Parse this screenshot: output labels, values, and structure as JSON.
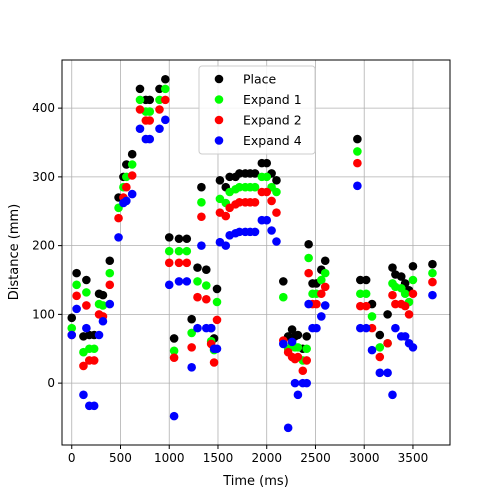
{
  "chart_data": {
    "type": "scatter",
    "title": "",
    "xlabel": "Time (ms)",
    "ylabel": "Distance (mm)",
    "xlim": [
      -100,
      3880
    ],
    "ylim": [
      -90,
      470
    ],
    "xticks": [
      0,
      500,
      1000,
      1500,
      2000,
      2500,
      3000,
      3500
    ],
    "yticks": [
      0,
      100,
      200,
      300,
      400
    ],
    "grid": true,
    "legend_position": "upper center",
    "series": [
      {
        "name": "Place",
        "color": "#000000",
        "points": [
          [
            0,
            95
          ],
          [
            50,
            160
          ],
          [
            120,
            68
          ],
          [
            150,
            150
          ],
          [
            180,
            70
          ],
          [
            230,
            70
          ],
          [
            280,
            130
          ],
          [
            320,
            128
          ],
          [
            390,
            178
          ],
          [
            480,
            270
          ],
          [
            530,
            300
          ],
          [
            560,
            318
          ],
          [
            620,
            333
          ],
          [
            700,
            428
          ],
          [
            760,
            412
          ],
          [
            800,
            412
          ],
          [
            900,
            428
          ],
          [
            960,
            442
          ],
          [
            1000,
            212
          ],
          [
            1050,
            65
          ],
          [
            1100,
            210
          ],
          [
            1180,
            210
          ],
          [
            1230,
            93
          ],
          [
            1290,
            168
          ],
          [
            1330,
            285
          ],
          [
            1380,
            165
          ],
          [
            1430,
            80
          ],
          [
            1460,
            65
          ],
          [
            1490,
            137
          ],
          [
            1520,
            295
          ],
          [
            1580,
            285
          ],
          [
            1620,
            300
          ],
          [
            1680,
            300
          ],
          [
            1720,
            305
          ],
          [
            1780,
            305
          ],
          [
            1830,
            305
          ],
          [
            1880,
            305
          ],
          [
            1950,
            320
          ],
          [
            2000,
            320
          ],
          [
            2050,
            305
          ],
          [
            2100,
            295
          ],
          [
            2170,
            148
          ],
          [
            2220,
            68
          ],
          [
            2260,
            78
          ],
          [
            2290,
            68
          ],
          [
            2320,
            70
          ],
          [
            2370,
            50
          ],
          [
            2410,
            68
          ],
          [
            2430,
            202
          ],
          [
            2470,
            145
          ],
          [
            2510,
            145
          ],
          [
            2560,
            165
          ],
          [
            2600,
            178
          ],
          [
            2930,
            355
          ],
          [
            2960,
            150
          ],
          [
            3020,
            150
          ],
          [
            3080,
            115
          ],
          [
            3160,
            70
          ],
          [
            3240,
            100
          ],
          [
            3290,
            168
          ],
          [
            3320,
            158
          ],
          [
            3380,
            155
          ],
          [
            3420,
            145
          ],
          [
            3460,
            135
          ],
          [
            3500,
            170
          ],
          [
            3700,
            173
          ]
        ]
      },
      {
        "name": "Expand 1",
        "color": "#00ff00",
        "points": [
          [
            0,
            80
          ],
          [
            50,
            143
          ],
          [
            120,
            45
          ],
          [
            150,
            132
          ],
          [
            180,
            50
          ],
          [
            230,
            50
          ],
          [
            280,
            115
          ],
          [
            320,
            113
          ],
          [
            390,
            160
          ],
          [
            480,
            255
          ],
          [
            530,
            285
          ],
          [
            560,
            300
          ],
          [
            620,
            318
          ],
          [
            700,
            412
          ],
          [
            760,
            395
          ],
          [
            800,
            395
          ],
          [
            900,
            412
          ],
          [
            960,
            428
          ],
          [
            1000,
            192
          ],
          [
            1050,
            47
          ],
          [
            1100,
            192
          ],
          [
            1180,
            192
          ],
          [
            1230,
            73
          ],
          [
            1290,
            148
          ],
          [
            1330,
            263
          ],
          [
            1380,
            142
          ],
          [
            1430,
            61
          ],
          [
            1460,
            48
          ],
          [
            1490,
            118
          ],
          [
            1520,
            268
          ],
          [
            1580,
            262
          ],
          [
            1620,
            278
          ],
          [
            1680,
            282
          ],
          [
            1720,
            285
          ],
          [
            1780,
            285
          ],
          [
            1830,
            285
          ],
          [
            1880,
            285
          ],
          [
            1950,
            300
          ],
          [
            2000,
            300
          ],
          [
            2050,
            285
          ],
          [
            2100,
            278
          ],
          [
            2170,
            125
          ],
          [
            2220,
            50
          ],
          [
            2260,
            58
          ],
          [
            2290,
            52
          ],
          [
            2320,
            52
          ],
          [
            2370,
            33
          ],
          [
            2410,
            50
          ],
          [
            2430,
            182
          ],
          [
            2470,
            130
          ],
          [
            2510,
            130
          ],
          [
            2560,
            150
          ],
          [
            2600,
            160
          ],
          [
            2930,
            337
          ],
          [
            2960,
            130
          ],
          [
            3020,
            130
          ],
          [
            3080,
            97
          ],
          [
            3160,
            52
          ],
          [
            3240,
            58
          ],
          [
            3290,
            145
          ],
          [
            3320,
            140
          ],
          [
            3380,
            138
          ],
          [
            3420,
            130
          ],
          [
            3460,
            118
          ],
          [
            3500,
            150
          ],
          [
            3700,
            160
          ]
        ]
      },
      {
        "name": "Expand 2",
        "color": "#ff0000",
        "points": [
          [
            0,
            70
          ],
          [
            50,
            127
          ],
          [
            120,
            25
          ],
          [
            150,
            113
          ],
          [
            180,
            33
          ],
          [
            230,
            33
          ],
          [
            280,
            100
          ],
          [
            320,
            97
          ],
          [
            390,
            143
          ],
          [
            480,
            240
          ],
          [
            530,
            270
          ],
          [
            560,
            285
          ],
          [
            620,
            302
          ],
          [
            700,
            398
          ],
          [
            760,
            382
          ],
          [
            800,
            382
          ],
          [
            900,
            398
          ],
          [
            960,
            412
          ],
          [
            1000,
            175
          ],
          [
            1050,
            37
          ],
          [
            1100,
            175
          ],
          [
            1180,
            175
          ],
          [
            1230,
            52
          ],
          [
            1290,
            125
          ],
          [
            1330,
            242
          ],
          [
            1380,
            122
          ],
          [
            1430,
            57
          ],
          [
            1460,
            30
          ],
          [
            1490,
            92
          ],
          [
            1520,
            248
          ],
          [
            1580,
            243
          ],
          [
            1620,
            255
          ],
          [
            1680,
            260
          ],
          [
            1720,
            263
          ],
          [
            1780,
            263
          ],
          [
            1830,
            263
          ],
          [
            1880,
            263
          ],
          [
            1950,
            278
          ],
          [
            2000,
            278
          ],
          [
            2050,
            265
          ],
          [
            2100,
            248
          ],
          [
            2170,
            62
          ],
          [
            2220,
            45
          ],
          [
            2260,
            38
          ],
          [
            2290,
            35
          ],
          [
            2320,
            38
          ],
          [
            2370,
            18
          ],
          [
            2410,
            33
          ],
          [
            2430,
            160
          ],
          [
            2470,
            115
          ],
          [
            2510,
            115
          ],
          [
            2560,
            130
          ],
          [
            2600,
            140
          ],
          [
            2930,
            320
          ],
          [
            2960,
            112
          ],
          [
            3020,
            112
          ],
          [
            3080,
            80
          ],
          [
            3160,
            38
          ],
          [
            3240,
            58
          ],
          [
            3290,
            128
          ],
          [
            3320,
            115
          ],
          [
            3380,
            115
          ],
          [
            3420,
            112
          ],
          [
            3460,
            100
          ],
          [
            3500,
            130
          ],
          [
            3700,
            147
          ]
        ]
      },
      {
        "name": "Expand 4",
        "color": "#0000ff",
        "points": [
          [
            0,
            70
          ],
          [
            50,
            108
          ],
          [
            120,
            -17
          ],
          [
            150,
            80
          ],
          [
            180,
            -33
          ],
          [
            230,
            -33
          ],
          [
            280,
            70
          ],
          [
            320,
            90
          ],
          [
            390,
            115
          ],
          [
            480,
            212
          ],
          [
            530,
            262
          ],
          [
            560,
            265
          ],
          [
            620,
            275
          ],
          [
            700,
            370
          ],
          [
            760,
            355
          ],
          [
            800,
            355
          ],
          [
            900,
            370
          ],
          [
            960,
            383
          ],
          [
            1000,
            143
          ],
          [
            1050,
            -48
          ],
          [
            1100,
            148
          ],
          [
            1180,
            148
          ],
          [
            1230,
            23
          ],
          [
            1290,
            80
          ],
          [
            1330,
            200
          ],
          [
            1380,
            80
          ],
          [
            1430,
            80
          ],
          [
            1460,
            50
          ],
          [
            1490,
            50
          ],
          [
            1520,
            205
          ],
          [
            1580,
            200
          ],
          [
            1620,
            215
          ],
          [
            1680,
            218
          ],
          [
            1720,
            220
          ],
          [
            1780,
            220
          ],
          [
            1830,
            220
          ],
          [
            1880,
            220
          ],
          [
            1950,
            237
          ],
          [
            2000,
            237
          ],
          [
            2050,
            222
          ],
          [
            2100,
            206
          ],
          [
            2170,
            57
          ],
          [
            2220,
            -65
          ],
          [
            2260,
            60
          ],
          [
            2290,
            0
          ],
          [
            2320,
            -17
          ],
          [
            2370,
            0
          ],
          [
            2410,
            0
          ],
          [
            2430,
            115
          ],
          [
            2470,
            80
          ],
          [
            2510,
            80
          ],
          [
            2560,
            97
          ],
          [
            2600,
            113
          ],
          [
            2930,
            287
          ],
          [
            2960,
            80
          ],
          [
            3020,
            80
          ],
          [
            3080,
            48
          ],
          [
            3160,
            15
          ],
          [
            3240,
            15
          ],
          [
            3290,
            -17
          ],
          [
            3320,
            80
          ],
          [
            3380,
            68
          ],
          [
            3420,
            68
          ],
          [
            3460,
            58
          ],
          [
            3500,
            52
          ],
          [
            3700,
            128
          ]
        ]
      }
    ]
  }
}
